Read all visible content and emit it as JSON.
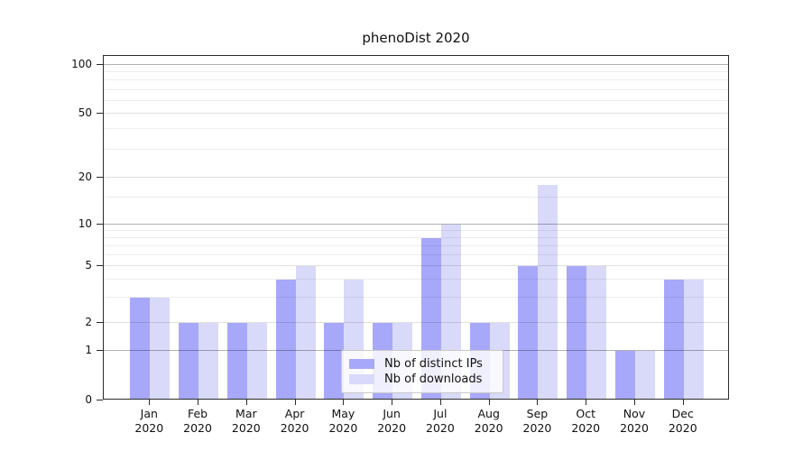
{
  "title": "phenoDist 2020",
  "colors": {
    "distinct_ips": "#a8a8fa",
    "downloads": "#d9d9fa",
    "frame": "#2b2b2b"
  },
  "legend": {
    "items": [
      {
        "label": "Nb of distinct IPs",
        "color_key": "distinct_ips"
      },
      {
        "label": "Nb of downloads",
        "color_key": "downloads"
      }
    ]
  },
  "y_axis": {
    "major_ticks": [
      0,
      1,
      2,
      5,
      10,
      20,
      50,
      100
    ],
    "decade_ticks": [
      1,
      10,
      100
    ],
    "minor_ticks": [
      3,
      4,
      6,
      7,
      8,
      9,
      15,
      30,
      40,
      60,
      70,
      80,
      90
    ]
  },
  "x_axis": {
    "months": [
      {
        "line1": "Jan",
        "line2": "2020"
      },
      {
        "line1": "Feb",
        "line2": "2020"
      },
      {
        "line1": "Mar",
        "line2": "2020"
      },
      {
        "line1": "Apr",
        "line2": "2020"
      },
      {
        "line1": "May",
        "line2": "2020"
      },
      {
        "line1": "Jun",
        "line2": "2020"
      },
      {
        "line1": "Jul",
        "line2": "2020"
      },
      {
        "line1": "Aug",
        "line2": "2020"
      },
      {
        "line1": "Sep",
        "line2": "2020"
      },
      {
        "line1": "Oct",
        "line2": "2020"
      },
      {
        "line1": "Nov",
        "line2": "2020"
      },
      {
        "line1": "Dec",
        "line2": "2020"
      }
    ]
  },
  "chart_data": {
    "type": "bar",
    "title": "phenoDist 2020",
    "xlabel": "",
    "ylabel": "",
    "yscale": "log-like",
    "ylim": [
      0,
      100
    ],
    "y_ticks": [
      0,
      1,
      2,
      5,
      10,
      20,
      50,
      100
    ],
    "grid": true,
    "legend_position": "inside-bottom-center",
    "categories": [
      "Jan 2020",
      "Feb 2020",
      "Mar 2020",
      "Apr 2020",
      "May 2020",
      "Jun 2020",
      "Jul 2020",
      "Aug 2020",
      "Sep 2020",
      "Oct 2020",
      "Nov 2020",
      "Dec 2020"
    ],
    "series": [
      {
        "name": "Nb of distinct IPs",
        "values": [
          3,
          2,
          2,
          4,
          2,
          2,
          8,
          2,
          5,
          5,
          1,
          4
        ]
      },
      {
        "name": "Nb of downloads",
        "values": [
          3,
          2,
          2,
          5,
          4,
          2,
          10,
          2,
          18,
          5,
          1,
          4
        ]
      }
    ]
  }
}
